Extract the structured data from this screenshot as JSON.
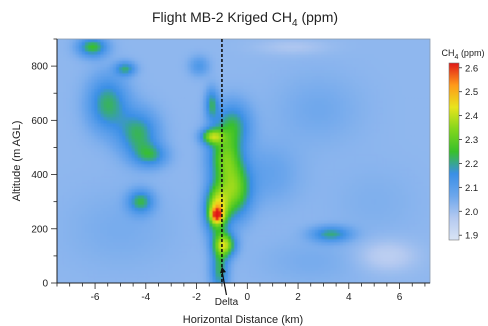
{
  "chart_data": {
    "type": "heatmap",
    "title": "Flight MB-2 Kriged CH",
    "title_subscript": "4",
    "title_suffix": " (ppm)",
    "xlabel": "Horizontal Distance (km)",
    "ylabel": "Altitude (m AGL)",
    "xlim": [
      -7.5,
      7.2
    ],
    "ylim": [
      0,
      900
    ],
    "x_ticks": [
      -6,
      -4,
      -2,
      0,
      2,
      4,
      6
    ],
    "x_tick_labels": [
      "-6",
      "-4",
      "-2",
      "0",
      "2",
      "4",
      "6"
    ],
    "y_ticks": [
      0,
      200,
      400,
      600,
      800
    ],
    "y_tick_labels": [
      "0",
      "200",
      "400",
      "600",
      "800"
    ],
    "colorbar": {
      "title": "CH",
      "title_subscript": "4",
      "title_suffix": " (ppm)",
      "range": [
        1.88,
        2.62
      ],
      "ticks": [
        1.9,
        2.0,
        2.1,
        2.2,
        2.3,
        2.4,
        2.5,
        2.6
      ],
      "tick_labels": [
        "1.9",
        "2.0",
        "2.1",
        "2.2",
        "2.3",
        "2.4",
        "2.5",
        "2.6"
      ],
      "colors": [
        "#d9e4f5",
        "#b4c9f0",
        "#6ca6ec",
        "#3a8fe6",
        "#38c02a",
        "#82d61c",
        "#e8e41c",
        "#ff9a1a",
        "#e01818"
      ]
    },
    "reference_line": {
      "x": -1.0,
      "style": "dashed"
    },
    "annotation": {
      "text": "Delta",
      "x": -0.9,
      "y": -10,
      "arrow_to": {
        "x": -1.0,
        "y": 60
      }
    },
    "background_value": 2.02,
    "features": [
      {
        "x": -6.1,
        "y": 870,
        "sx": 0.4,
        "sy": 25,
        "value": 2.25
      },
      {
        "x": -4.8,
        "y": 790,
        "sx": 0.28,
        "sy": 18,
        "value": 2.2
      },
      {
        "x": -5.5,
        "y": 660,
        "sx": 0.55,
        "sy": 70,
        "value": 2.22
      },
      {
        "x": -4.3,
        "y": 550,
        "sx": 0.55,
        "sy": 60,
        "value": 2.22
      },
      {
        "x": -3.8,
        "y": 470,
        "sx": 0.45,
        "sy": 30,
        "value": 2.18
      },
      {
        "x": -4.2,
        "y": 300,
        "sx": 0.35,
        "sy": 30,
        "value": 2.22
      },
      {
        "x": -1.9,
        "y": 800,
        "sx": 0.28,
        "sy": 25,
        "value": 2.12
      },
      {
        "x": -1.4,
        "y": 660,
        "sx": 0.18,
        "sy": 40,
        "value": 2.2
      },
      {
        "x": -1.4,
        "y": 540,
        "sx": 0.3,
        "sy": 20,
        "value": 2.3
      },
      {
        "x": -0.6,
        "y": 580,
        "sx": 0.5,
        "sy": 60,
        "value": 2.22
      },
      {
        "x": -0.9,
        "y": 460,
        "sx": 0.45,
        "sy": 60,
        "value": 2.26
      },
      {
        "x": -0.5,
        "y": 340,
        "sx": 0.45,
        "sy": 70,
        "value": 2.3
      },
      {
        "x": -1.2,
        "y": 270,
        "sx": 0.32,
        "sy": 60,
        "value": 2.4
      },
      {
        "x": -0.9,
        "y": 140,
        "sx": 0.3,
        "sy": 30,
        "value": 2.35
      },
      {
        "x": -1.1,
        "y": 50,
        "sx": 0.25,
        "sy": 60,
        "value": 2.22
      },
      {
        "x": 3.3,
        "y": 180,
        "sx": 0.55,
        "sy": 20,
        "value": 2.2
      },
      {
        "x": 0.8,
        "y": 400,
        "sx": 0.9,
        "sy": 80,
        "value": 2.08
      },
      {
        "x": 2.8,
        "y": 640,
        "sx": 1.2,
        "sy": 90,
        "value": 2.06
      },
      {
        "x": 5.0,
        "y": 300,
        "sx": 1.2,
        "sy": 90,
        "value": 2.04
      },
      {
        "x": 2.5,
        "y": 80,
        "sx": 1.4,
        "sy": 60,
        "value": 2.05
      },
      {
        "x": -5.0,
        "y": 200,
        "sx": 1.5,
        "sy": 100,
        "value": 2.05
      },
      {
        "x": 5.5,
        "y": 100,
        "sx": 0.8,
        "sy": 40,
        "value": 1.95
      },
      {
        "x": 1.8,
        "y": 870,
        "sx": 1.0,
        "sy": 20,
        "value": 1.98
      }
    ],
    "peak": {
      "x": -1.2,
      "y": 250,
      "value": 2.6
    }
  }
}
